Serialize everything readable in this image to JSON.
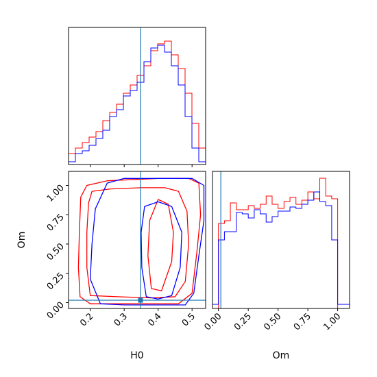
{
  "chart_data": [
    {
      "type": "histogram",
      "panel": "H0 marginal",
      "xlim": [
        0.136,
        0.54
      ],
      "ylabel_visible": false,
      "marker_x": 0.348,
      "bin_edges": [
        0.136,
        0.1562,
        0.1764,
        0.1966,
        0.2168,
        0.237,
        0.2572,
        0.2774,
        0.2976,
        0.3178,
        0.338,
        0.3582,
        0.3784,
        0.3986,
        0.4188,
        0.439,
        0.4592,
        0.4794,
        0.4996,
        0.5198,
        0.54
      ],
      "series": [
        {
          "name": "red",
          "color": "#ff0000",
          "values": [
            0.08,
            0.12,
            0.16,
            0.2,
            0.24,
            0.32,
            0.38,
            0.44,
            0.52,
            0.58,
            0.65,
            0.72,
            0.83,
            0.88,
            0.9,
            0.8,
            0.7,
            0.52,
            0.3,
            0.12
          ]
        },
        {
          "name": "blue",
          "color": "#0000ff",
          "values": [
            0.02,
            0.08,
            0.1,
            0.14,
            0.19,
            0.25,
            0.35,
            0.4,
            0.5,
            0.54,
            0.6,
            0.75,
            0.85,
            0.87,
            0.82,
            0.72,
            0.58,
            0.35,
            0.12,
            0.02
          ]
        }
      ]
    },
    {
      "type": "contour",
      "panel": "H0 vs Om joint",
      "xlabel": "H0",
      "ylabel": "Om",
      "xlim": [
        0.136,
        0.54
      ],
      "ylim": [
        -0.05,
        1.12
      ],
      "xticks": [
        "0.2",
        "0.3",
        "0.4",
        "0.5"
      ],
      "yticks": [
        "0.00",
        "0.25",
        "0.50",
        "0.75",
        "1.00"
      ],
      "truth": {
        "x": 0.348,
        "y": 0.02
      },
      "series": [
        {
          "name": "red",
          "color": "#ff0000",
          "contours": [
            [
              [
                0.19,
                1.0
              ],
              [
                0.25,
                1.04
              ],
              [
                0.4,
                1.06
              ],
              [
                0.49,
                1.06
              ],
              [
                0.52,
                1.02
              ],
              [
                0.525,
                0.75
              ],
              [
                0.515,
                0.45
              ],
              [
                0.5,
                0.08
              ],
              [
                0.46,
                -0.01
              ],
              [
                0.3,
                -0.01
              ],
              [
                0.2,
                -0.01
              ],
              [
                0.17,
                0.05
              ],
              [
                0.165,
                0.3
              ],
              [
                0.168,
                0.6
              ],
              [
                0.172,
                0.9
              ],
              [
                0.19,
                1.0
              ]
            ],
            [
              [
                0.205,
                0.95
              ],
              [
                0.26,
                0.97
              ],
              [
                0.35,
                0.98
              ],
              [
                0.42,
                0.98
              ],
              [
                0.46,
                0.95
              ],
              [
                0.485,
                0.78
              ],
              [
                0.49,
                0.5
              ],
              [
                0.48,
                0.18
              ],
              [
                0.45,
                0.05
              ],
              [
                0.38,
                0.04
              ],
              [
                0.28,
                0.05
              ],
              [
                0.2,
                0.06
              ],
              [
                0.19,
                0.3
              ],
              [
                0.19,
                0.6
              ],
              [
                0.195,
                0.85
              ],
              [
                0.205,
                0.95
              ]
            ],
            [
              [
                0.4,
                0.88
              ],
              [
                0.43,
                0.84
              ],
              [
                0.445,
                0.6
              ],
              [
                0.44,
                0.35
              ],
              [
                0.41,
                0.1
              ],
              [
                0.38,
                0.12
              ],
              [
                0.37,
                0.4
              ],
              [
                0.375,
                0.7
              ],
              [
                0.4,
                0.88
              ]
            ]
          ]
        },
        {
          "name": "blue",
          "color": "#0000ff",
          "contours": [
            [
              [
                0.25,
                1.02
              ],
              [
                0.3,
                1.06
              ],
              [
                0.43,
                1.06
              ],
              [
                0.5,
                1.06
              ],
              [
                0.535,
                1.0
              ],
              [
                0.535,
                0.7
              ],
              [
                0.52,
                0.4
              ],
              [
                0.505,
                0.08
              ],
              [
                0.48,
                -0.02
              ],
              [
                0.4,
                -0.02
              ],
              [
                0.3,
                -0.02
              ],
              [
                0.23,
                -0.01
              ],
              [
                0.2,
                0.2
              ],
              [
                0.205,
                0.5
              ],
              [
                0.215,
                0.8
              ],
              [
                0.25,
                1.02
              ]
            ],
            [
              [
                0.36,
                0.82
              ],
              [
                0.4,
                0.86
              ],
              [
                0.44,
                0.82
              ],
              [
                0.47,
                0.6
              ],
              [
                0.465,
                0.3
              ],
              [
                0.44,
                0.06
              ],
              [
                0.4,
                0.03
              ],
              [
                0.365,
                0.05
              ],
              [
                0.352,
                0.3
              ],
              [
                0.35,
                0.6
              ],
              [
                0.36,
                0.82
              ]
            ]
          ]
        }
      ]
    },
    {
      "type": "histogram",
      "panel": "Om marginal",
      "xlabel": "Om",
      "xlim": [
        -0.05,
        1.1
      ],
      "xticks": [
        "0.00",
        "0.25",
        "0.50",
        "0.75",
        "1.00"
      ],
      "ylabel_visible": false,
      "marker_x": 0.02,
      "bin_edges": [
        -0.05,
        0.0,
        0.05,
        0.1,
        0.15,
        0.2,
        0.25,
        0.3,
        0.35,
        0.4,
        0.45,
        0.5,
        0.55,
        0.6,
        0.65,
        0.7,
        0.75,
        0.8,
        0.85,
        0.9,
        0.95,
        1.0,
        1.05,
        1.1
      ],
      "series": [
        {
          "name": "red",
          "color": "#ff0000",
          "values": [
            0.0,
            0.62,
            0.64,
            0.77,
            0.72,
            0.72,
            0.75,
            0.73,
            0.76,
            0.82,
            0.76,
            0.73,
            0.78,
            0.81,
            0.76,
            0.79,
            0.85,
            0.8,
            0.95,
            0.82,
            0.8,
            0.0,
            0.0
          ]
        },
        {
          "name": "blue",
          "color": "#0000ff",
          "values": [
            0.03,
            0.5,
            0.56,
            0.56,
            0.7,
            0.69,
            0.66,
            0.72,
            0.69,
            0.63,
            0.67,
            0.71,
            0.71,
            0.74,
            0.73,
            0.76,
            0.79,
            0.85,
            0.78,
            0.75,
            0.5,
            0.03,
            0.03
          ]
        }
      ]
    }
  ]
}
